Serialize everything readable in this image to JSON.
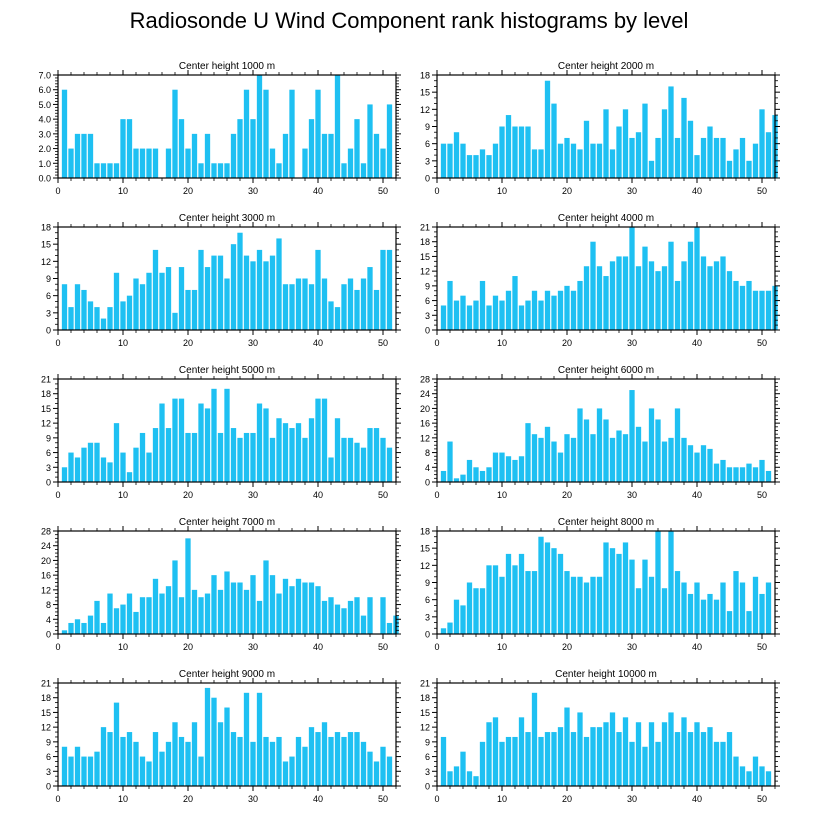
{
  "title": "Radiosonde U Wind Component rank histograms by level",
  "colors": {
    "bar": "#1ec0f2",
    "bar_edge": "#ffffff",
    "axis": "#000000"
  },
  "chart_data": [
    {
      "type": "bar",
      "title": "Center height 1000 m",
      "xlim": [
        0,
        52
      ],
      "ylim": [
        0,
        7
      ],
      "xticks": [
        0,
        10,
        20,
        30,
        40,
        50
      ],
      "yticks": [
        "0.0",
        "1.0",
        "2.0",
        "3.0",
        "4.0",
        "5.0",
        "6.0",
        "7.0"
      ],
      "ytick_values": [
        0,
        1,
        2,
        3,
        4,
        5,
        6,
        7
      ],
      "values": [
        6,
        2,
        3,
        3,
        3,
        1,
        1,
        1,
        1,
        4,
        4,
        2,
        2,
        2,
        2,
        0,
        2,
        6,
        4,
        2,
        3,
        1,
        3,
        1,
        1,
        1,
        3,
        4,
        6,
        4,
        7,
        6,
        2,
        1,
        3,
        6,
        0,
        2,
        4,
        6,
        3,
        3,
        7,
        1,
        2,
        4,
        1,
        5,
        3,
        2,
        5
      ]
    },
    {
      "type": "bar",
      "title": "Center height 2000 m",
      "xlim": [
        0,
        52
      ],
      "ylim": [
        0,
        18
      ],
      "xticks": [
        0,
        10,
        20,
        30,
        40,
        50
      ],
      "yticks": [
        "0",
        "3",
        "6",
        "9",
        "12",
        "15",
        "18"
      ],
      "ytick_values": [
        0,
        3,
        6,
        9,
        12,
        15,
        18
      ],
      "values": [
        6,
        6,
        8,
        6,
        4,
        4,
        5,
        4,
        6,
        9,
        11,
        9,
        9,
        9,
        5,
        5,
        17,
        13,
        6,
        7,
        6,
        5,
        10,
        6,
        6,
        12,
        5,
        9,
        12,
        7,
        8,
        13,
        3,
        7,
        12,
        16,
        7,
        14,
        10,
        4,
        7,
        9,
        7,
        7,
        3,
        5,
        7,
        3,
        6,
        12,
        8,
        11
      ]
    },
    {
      "type": "bar",
      "title": "Center height 3000 m",
      "xlim": [
        0,
        52
      ],
      "ylim": [
        0,
        18
      ],
      "xticks": [
        0,
        10,
        20,
        30,
        40,
        50
      ],
      "yticks": [
        "0",
        "3",
        "6",
        "9",
        "12",
        "15",
        "18"
      ],
      "ytick_values": [
        0,
        3,
        6,
        9,
        12,
        15,
        18
      ],
      "values": [
        8,
        4,
        8,
        7,
        5,
        4,
        2,
        4,
        10,
        5,
        6,
        9,
        8,
        10,
        14,
        10,
        11,
        3,
        11,
        7,
        7,
        14,
        11,
        13,
        13,
        9,
        15,
        17,
        13,
        12,
        14,
        12,
        13,
        16,
        8,
        8,
        9,
        9,
        8,
        14,
        9,
        5,
        4,
        8,
        9,
        7,
        9,
        11,
        7,
        14,
        14
      ]
    },
    {
      "type": "bar",
      "title": "Center height 4000 m",
      "xlim": [
        0,
        52
      ],
      "ylim": [
        0,
        21
      ],
      "xticks": [
        0,
        10,
        20,
        30,
        40,
        50
      ],
      "yticks": [
        "0",
        "3",
        "6",
        "9",
        "12",
        "15",
        "18",
        "21"
      ],
      "ytick_values": [
        0,
        3,
        6,
        9,
        12,
        15,
        18,
        21
      ],
      "values": [
        5,
        10,
        6,
        7,
        5,
        6,
        10,
        5,
        7,
        6,
        8,
        11,
        5,
        6,
        8,
        6,
        8,
        7,
        8,
        9,
        8,
        10,
        13,
        18,
        13,
        11,
        14,
        15,
        15,
        21,
        13,
        17,
        14,
        12,
        13,
        18,
        10,
        14,
        18,
        21,
        15,
        13,
        14,
        15,
        12,
        10,
        9,
        10,
        8,
        8,
        8,
        9
      ]
    },
    {
      "type": "bar",
      "title": "Center height 5000 m",
      "xlim": [
        0,
        52
      ],
      "ylim": [
        0,
        21
      ],
      "xticks": [
        0,
        10,
        20,
        30,
        40,
        50
      ],
      "yticks": [
        "0",
        "3",
        "6",
        "9",
        "12",
        "15",
        "18",
        "21"
      ],
      "ytick_values": [
        0,
        3,
        6,
        9,
        12,
        15,
        18,
        21
      ],
      "values": [
        3,
        6,
        5,
        7,
        8,
        8,
        5,
        4,
        12,
        6,
        2,
        7,
        10,
        6,
        11,
        16,
        11,
        17,
        17,
        10,
        10,
        16,
        15,
        19,
        10,
        19,
        11,
        9,
        10,
        10,
        16,
        15,
        9,
        13,
        12,
        11,
        12,
        9,
        13,
        17,
        17,
        5,
        13,
        9,
        9,
        8,
        7,
        11,
        11,
        9,
        7
      ]
    },
    {
      "type": "bar",
      "title": "Center height 6000 m",
      "xlim": [
        0,
        52
      ],
      "ylim": [
        0,
        28
      ],
      "xticks": [
        0,
        10,
        20,
        30,
        40,
        50
      ],
      "yticks": [
        "0",
        "4",
        "8",
        "12",
        "16",
        "20",
        "24",
        "28"
      ],
      "ytick_values": [
        0,
        4,
        8,
        12,
        16,
        20,
        24,
        28
      ],
      "values": [
        3,
        11,
        1,
        2,
        6,
        4,
        3,
        4,
        8,
        8,
        7,
        6,
        7,
        16,
        13,
        12,
        15,
        11,
        8,
        13,
        12,
        20,
        17,
        13,
        20,
        17,
        12,
        14,
        13,
        25,
        15,
        11,
        20,
        17,
        11,
        12,
        20,
        12,
        10,
        8,
        10,
        9,
        5,
        6,
        4,
        4,
        4,
        5,
        4,
        6,
        3
      ]
    },
    {
      "type": "bar",
      "title": "Center height 7000 m",
      "xlim": [
        0,
        52
      ],
      "ylim": [
        0,
        28
      ],
      "xticks": [
        0,
        10,
        20,
        30,
        40,
        50
      ],
      "yticks": [
        "0",
        "4",
        "8",
        "12",
        "16",
        "20",
        "24",
        "28"
      ],
      "ytick_values": [
        0,
        4,
        8,
        12,
        16,
        20,
        24,
        28
      ],
      "values": [
        1,
        3,
        4,
        3,
        5,
        9,
        3,
        11,
        7,
        8,
        11,
        6,
        10,
        10,
        15,
        11,
        13,
        20,
        10,
        26,
        12,
        10,
        11,
        16,
        12,
        17,
        14,
        14,
        12,
        16,
        9,
        20,
        16,
        11,
        15,
        13,
        15,
        14,
        14,
        13,
        9,
        10,
        8,
        7,
        9,
        10,
        5,
        10,
        0,
        10,
        3,
        5
      ]
    },
    {
      "type": "bar",
      "title": "Center height 8000 m",
      "xlim": [
        0,
        52
      ],
      "ylim": [
        0,
        18
      ],
      "xticks": [
        0,
        10,
        20,
        30,
        40,
        50
      ],
      "yticks": [
        "0",
        "3",
        "6",
        "9",
        "12",
        "15",
        "18"
      ],
      "ytick_values": [
        0,
        3,
        6,
        9,
        12,
        15,
        18
      ],
      "values": [
        1,
        2,
        6,
        5,
        9,
        8,
        8,
        12,
        12,
        10,
        14,
        12,
        14,
        11,
        11,
        17,
        16,
        15,
        14,
        11,
        10,
        10,
        9,
        10,
        10,
        16,
        15,
        14,
        16,
        13,
        8,
        13,
        10,
        18,
        8,
        18,
        11,
        9,
        7,
        9,
        6,
        7,
        6,
        9,
        4,
        11,
        9,
        4,
        10,
        7,
        9
      ]
    },
    {
      "type": "bar",
      "title": "Center height 9000 m",
      "xlim": [
        0,
        52
      ],
      "ylim": [
        0,
        21
      ],
      "xticks": [
        0,
        10,
        20,
        30,
        40,
        50
      ],
      "yticks": [
        "0",
        "3",
        "6",
        "9",
        "12",
        "15",
        "18",
        "21"
      ],
      "ytick_values": [
        0,
        3,
        6,
        9,
        12,
        15,
        18,
        21
      ],
      "values": [
        8,
        6,
        8,
        6,
        6,
        7,
        12,
        11,
        17,
        10,
        11,
        9,
        6,
        5,
        11,
        7,
        9,
        13,
        10,
        9,
        13,
        6,
        20,
        18,
        13,
        16,
        11,
        10,
        19,
        9,
        19,
        10,
        9,
        10,
        5,
        6,
        10,
        8,
        12,
        11,
        13,
        10,
        11,
        10,
        11,
        11,
        9,
        7,
        5,
        8,
        6
      ]
    },
    {
      "type": "bar",
      "title": "Center height 10000 m",
      "xlim": [
        0,
        52
      ],
      "ylim": [
        0,
        21
      ],
      "xticks": [
        0,
        10,
        20,
        30,
        40,
        50
      ],
      "yticks": [
        "0",
        "3",
        "6",
        "9",
        "12",
        "15",
        "18",
        "21"
      ],
      "ytick_values": [
        0,
        3,
        6,
        9,
        12,
        15,
        18,
        21
      ],
      "values": [
        10,
        3,
        4,
        7,
        3,
        2,
        9,
        13,
        14,
        9,
        10,
        10,
        14,
        11,
        19,
        10,
        11,
        11,
        12,
        16,
        11,
        15,
        10,
        12,
        12,
        13,
        15,
        11,
        14,
        9,
        13,
        8,
        13,
        9,
        13,
        15,
        11,
        14,
        11,
        13,
        11,
        12,
        9,
        9,
        11,
        6,
        4,
        3,
        6,
        4,
        3
      ]
    }
  ]
}
